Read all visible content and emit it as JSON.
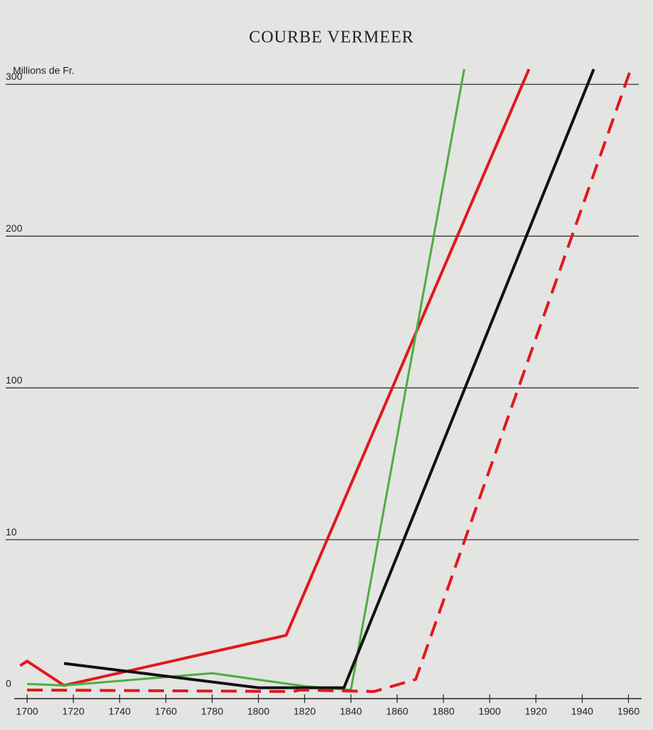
{
  "chart_data": {
    "type": "line",
    "title": "COURBE VERMEER",
    "ylabel": "Millions de Fr.",
    "xlim": [
      1700,
      1970
    ],
    "xticks": [
      1700,
      1720,
      1740,
      1760,
      1780,
      1800,
      1820,
      1840,
      1860,
      1880,
      1900,
      1920,
      1940,
      1960
    ],
    "ylim": [
      0,
      310
    ],
    "yticks": [
      0,
      10,
      100,
      200,
      300
    ],
    "grid": true,
    "series": [
      {
        "color": "#e0191e",
        "width": 4,
        "dash": false,
        "x": [
          1697,
          1700,
          1716,
          1812,
          1917
        ],
        "values": [
          1.7,
          2.0,
          0.4,
          3.7,
          310
        ]
      },
      {
        "color": "#4caf3c",
        "width": 3,
        "dash": false,
        "x": [
          1700,
          1716,
          1780,
          1820,
          1840,
          1889
        ],
        "values": [
          0.5,
          0.4,
          1.2,
          0.35,
          0.1,
          310
        ]
      },
      {
        "color": "#111111",
        "width": 4,
        "dash": false,
        "x": [
          1716,
          1800,
          1837,
          1945
        ],
        "values": [
          1.85,
          0.25,
          0.25,
          310
        ]
      },
      {
        "color": "#e0191e",
        "width": 4,
        "dash": true,
        "x": [
          1700,
          1815,
          1818,
          1850,
          1868,
          1961
        ],
        "values": [
          0.1,
          0,
          0.1,
          0,
          0.8,
          310
        ]
      }
    ]
  }
}
